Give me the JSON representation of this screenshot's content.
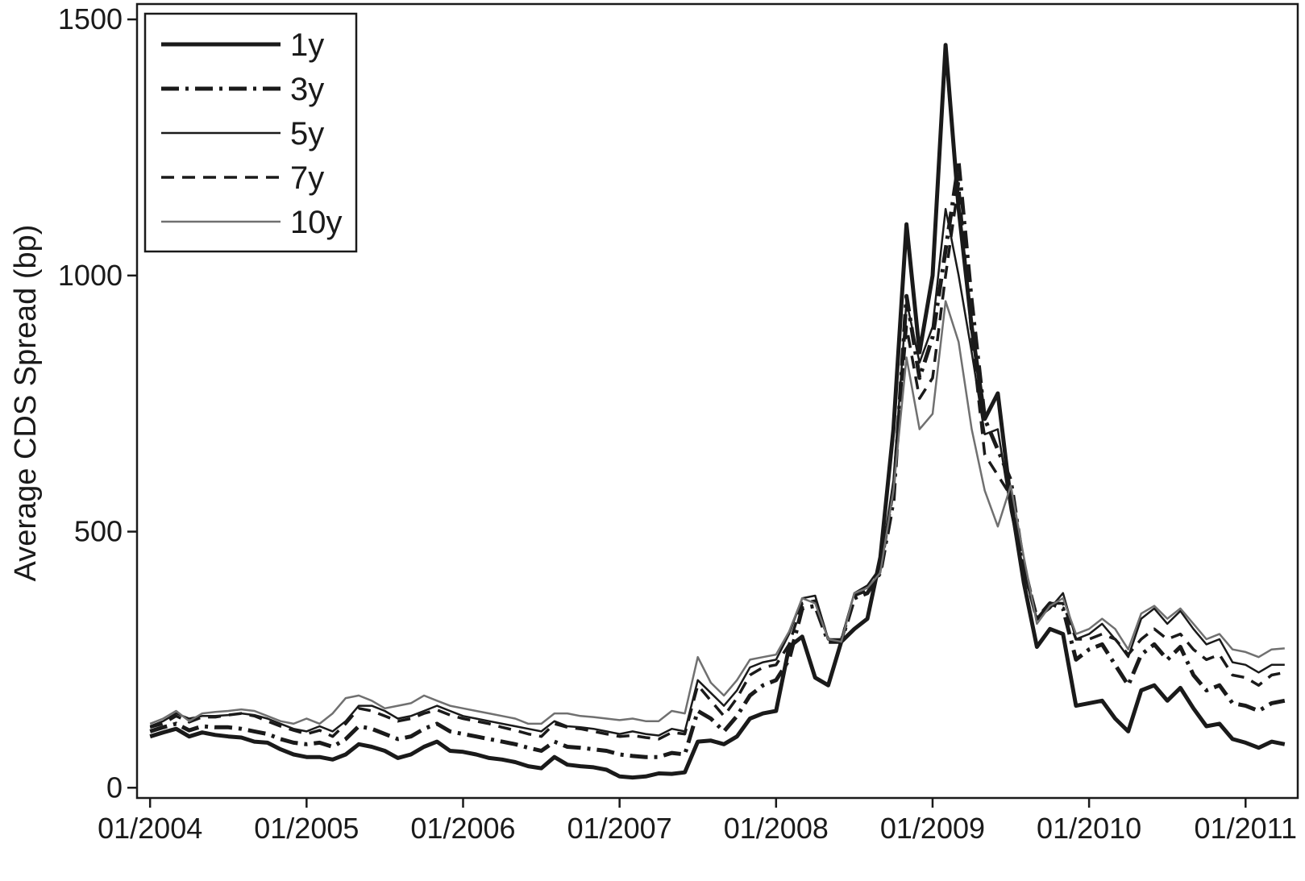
{
  "chart_data": {
    "type": "line",
    "y_label": "Average CDS Spread (bp)",
    "legend": "upper left",
    "xlim": [
      "2003-12",
      "2011-05"
    ],
    "ylim": [
      -20,
      1530
    ],
    "yticks": [
      0,
      500,
      1000,
      1500
    ],
    "xticks": [
      {
        "value": "2004-01",
        "label": "01/2004"
      },
      {
        "value": "2005-01",
        "label": "01/2005"
      },
      {
        "value": "2006-01",
        "label": "01/2006"
      },
      {
        "value": "2007-01",
        "label": "01/2007"
      },
      {
        "value": "2008-01",
        "label": "01/2008"
      },
      {
        "value": "2009-01",
        "label": "01/2009"
      },
      {
        "value": "2010-01",
        "label": "01/2010"
      },
      {
        "value": "2011-01",
        "label": "01/2011"
      }
    ],
    "x": [
      "2004-01",
      "2004-02",
      "2004-03",
      "2004-04",
      "2004-05",
      "2004-06",
      "2004-07",
      "2004-08",
      "2004-09",
      "2004-10",
      "2004-11",
      "2004-12",
      "2005-01",
      "2005-02",
      "2005-03",
      "2005-04",
      "2005-05",
      "2005-06",
      "2005-07",
      "2005-08",
      "2005-09",
      "2005-10",
      "2005-11",
      "2005-12",
      "2006-01",
      "2006-02",
      "2006-03",
      "2006-04",
      "2006-05",
      "2006-06",
      "2006-07",
      "2006-08",
      "2006-09",
      "2006-10",
      "2006-11",
      "2006-12",
      "2007-01",
      "2007-02",
      "2007-03",
      "2007-04",
      "2007-05",
      "2007-06",
      "2007-07",
      "2007-08",
      "2007-09",
      "2007-10",
      "2007-11",
      "2007-12",
      "2008-01",
      "2008-02",
      "2008-03",
      "2008-04",
      "2008-05",
      "2008-06",
      "2008-07",
      "2008-08",
      "2008-09",
      "2008-10",
      "2008-11",
      "2008-12",
      "2009-01",
      "2009-02",
      "2009-03",
      "2009-04",
      "2009-05",
      "2009-06",
      "2009-07",
      "2009-08",
      "2009-09",
      "2009-10",
      "2009-11",
      "2009-12",
      "2010-01",
      "2010-02",
      "2010-03",
      "2010-04",
      "2010-05",
      "2010-06",
      "2010-07",
      "2010-08",
      "2010-09",
      "2010-10",
      "2010-11",
      "2010-12",
      "2011-01",
      "2011-02",
      "2011-03",
      "2011-04"
    ],
    "series": [
      {
        "name": "1y",
        "color": "#1a1a1a",
        "values": [
          100,
          108,
          115,
          100,
          108,
          103,
          100,
          98,
          90,
          88,
          75,
          65,
          60,
          60,
          55,
          65,
          85,
          80,
          72,
          58,
          65,
          80,
          90,
          72,
          70,
          65,
          58,
          55,
          50,
          42,
          38,
          60,
          45,
          42,
          40,
          35,
          22,
          20,
          22,
          28,
          27,
          30,
          90,
          92,
          85,
          100,
          135,
          145,
          150,
          275,
          295,
          215,
          200,
          285,
          310,
          330,
          450,
          700,
          1100,
          850,
          1000,
          1450,
          1130,
          900,
          720,
          770,
          560,
          400,
          275,
          310,
          300,
          160,
          165,
          170,
          135,
          110,
          190,
          200,
          170,
          195,
          155,
          120,
          125,
          95,
          88,
          78,
          90,
          85
        ]
      },
      {
        "name": "3y",
        "color": "#1a1a1a",
        "values": [
          110,
          118,
          125,
          112,
          120,
          118,
          118,
          115,
          110,
          105,
          95,
          88,
          85,
          88,
          80,
          95,
          120,
          115,
          105,
          95,
          100,
          115,
          125,
          110,
          105,
          100,
          95,
          90,
          85,
          78,
          72,
          90,
          80,
          78,
          75,
          72,
          65,
          62,
          60,
          60,
          68,
          65,
          150,
          135,
          110,
          140,
          180,
          200,
          210,
          250,
          350,
          355,
          285,
          285,
          370,
          380,
          420,
          560,
          960,
          800,
          880,
          1050,
          1220,
          950,
          720,
          660,
          600,
          430,
          330,
          360,
          350,
          250,
          270,
          280,
          240,
          200,
          260,
          280,
          250,
          275,
          220,
          190,
          200,
          165,
          160,
          150,
          165,
          170
        ]
      },
      {
        "name": "5y",
        "color": "#1a1a1a",
        "values": [
          120,
          130,
          145,
          135,
          140,
          140,
          142,
          145,
          142,
          135,
          125,
          115,
          110,
          120,
          110,
          130,
          160,
          160,
          150,
          135,
          140,
          150,
          160,
          150,
          140,
          135,
          130,
          125,
          120,
          115,
          110,
          130,
          120,
          118,
          115,
          110,
          105,
          110,
          105,
          102,
          115,
          110,
          210,
          185,
          160,
          190,
          235,
          245,
          250,
          300,
          370,
          375,
          290,
          290,
          380,
          395,
          430,
          600,
          950,
          830,
          900,
          1130,
          1000,
          850,
          690,
          700,
          540,
          420,
          330,
          350,
          380,
          290,
          300,
          320,
          290,
          255,
          330,
          350,
          320,
          345,
          310,
          280,
          290,
          245,
          240,
          225,
          240,
          240
        ]
      },
      {
        "name": "7y",
        "color": "#1a1a1a",
        "values": [
          118,
          125,
          140,
          128,
          138,
          138,
          142,
          145,
          140,
          130,
          120,
          112,
          105,
          112,
          100,
          125,
          155,
          150,
          140,
          130,
          135,
          145,
          152,
          142,
          135,
          130,
          125,
          118,
          112,
          105,
          100,
          125,
          118,
          115,
          110,
          105,
          100,
          102,
          98,
          95,
          108,
          105,
          200,
          170,
          140,
          175,
          220,
          235,
          240,
          280,
          360,
          365,
          290,
          285,
          375,
          385,
          420,
          580,
          900,
          760,
          800,
          1000,
          1180,
          880,
          650,
          610,
          570,
          440,
          330,
          360,
          360,
          290,
          290,
          300,
          290,
          260,
          290,
          310,
          290,
          300,
          270,
          250,
          260,
          220,
          215,
          200,
          220,
          225
        ]
      },
      {
        "name": "10y",
        "color": "#707070",
        "values": [
          125,
          135,
          150,
          130,
          145,
          148,
          150,
          153,
          150,
          140,
          130,
          125,
          135,
          125,
          145,
          175,
          180,
          170,
          155,
          160,
          165,
          180,
          170,
          160,
          155,
          150,
          145,
          140,
          135,
          125,
          125,
          145,
          145,
          140,
          138,
          135,
          132,
          135,
          130,
          130,
          150,
          145,
          255,
          205,
          180,
          210,
          250,
          255,
          260,
          305,
          370,
          360,
          290,
          285,
          380,
          390,
          420,
          580,
          840,
          700,
          730,
          950,
          870,
          700,
          580,
          510,
          590,
          450,
          320,
          355,
          370,
          300,
          310,
          330,
          310,
          270,
          340,
          355,
          330,
          350,
          320,
          290,
          300,
          270,
          265,
          255,
          270,
          272
        ]
      }
    ]
  }
}
